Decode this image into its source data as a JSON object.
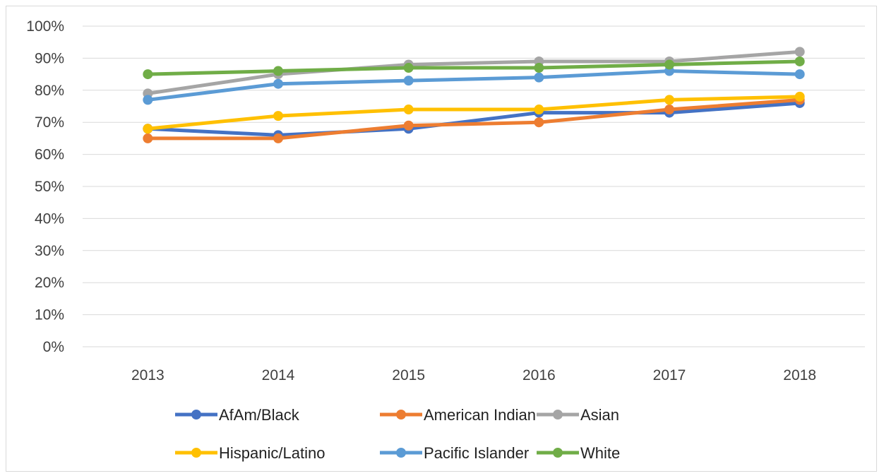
{
  "chart_data": {
    "type": "line",
    "title": "",
    "xlabel": "",
    "ylabel": "",
    "x": [
      "2013",
      "2014",
      "2015",
      "2016",
      "2017",
      "2018"
    ],
    "ylim": [
      0,
      100
    ],
    "y_ticks": [
      "0%",
      "10%",
      "20%",
      "30%",
      "40%",
      "50%",
      "60%",
      "70%",
      "80%",
      "90%",
      "100%"
    ],
    "grid": true,
    "legend_position": "bottom",
    "series": [
      {
        "name": "AfAm/Black",
        "color": "#4472C4",
        "values": [
          68,
          66,
          68,
          73,
          73,
          76
        ]
      },
      {
        "name": "American Indian",
        "color": "#ED7D31",
        "values": [
          65,
          65,
          69,
          70,
          74,
          77
        ]
      },
      {
        "name": "Asian",
        "color": "#A5A5A5",
        "values": [
          79,
          85,
          88,
          89,
          89,
          92
        ]
      },
      {
        "name": "Hispanic/Latino",
        "color": "#FFC000",
        "values": [
          68,
          72,
          74,
          74,
          77,
          78
        ]
      },
      {
        "name": "Pacific Islander",
        "color": "#5B9BD5",
        "values": [
          77,
          82,
          83,
          84,
          86,
          85
        ]
      },
      {
        "name": "White",
        "color": "#70AD47",
        "values": [
          85,
          86,
          87,
          87,
          88,
          89
        ]
      }
    ]
  }
}
